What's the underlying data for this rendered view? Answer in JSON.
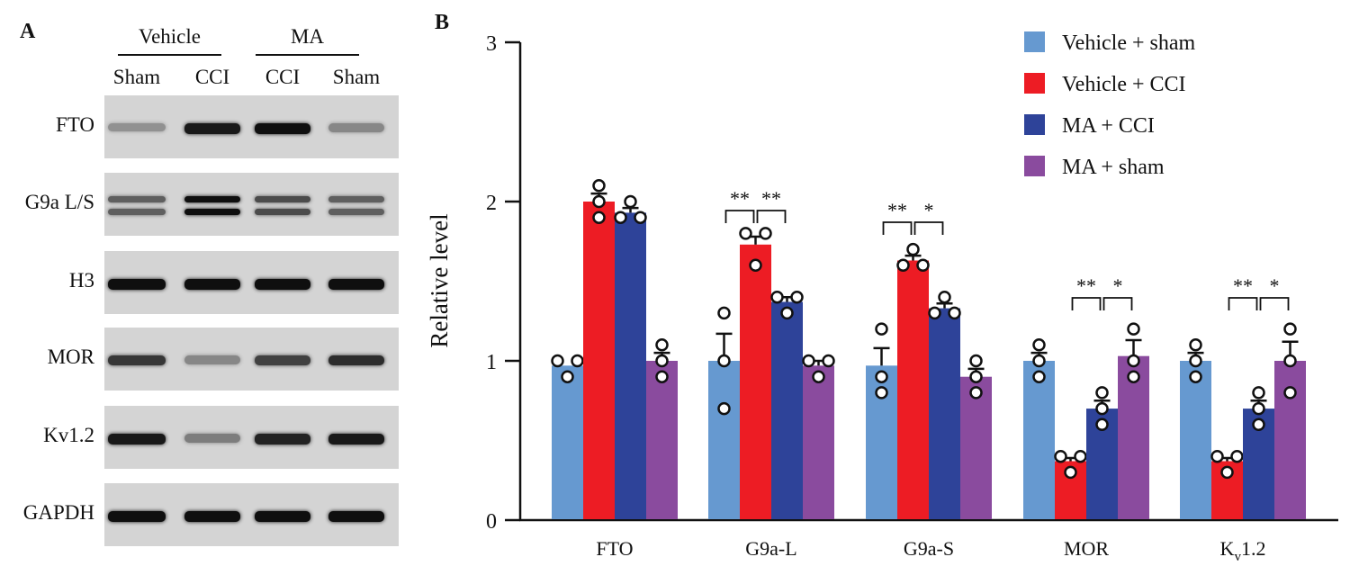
{
  "panel_a": {
    "letter": "A",
    "groups": [
      {
        "label": "Vehicle",
        "lanes": [
          "Sham",
          "CCI"
        ]
      },
      {
        "label": "MA",
        "lanes": [
          "CCI",
          "Sham"
        ]
      }
    ],
    "rows": [
      {
        "label": "FTO",
        "bands": [
          0.35,
          0.95,
          1.0,
          0.4
        ],
        "double": false
      },
      {
        "label": "G9a L/S",
        "bands": [
          0.6,
          1.0,
          0.7,
          0.6
        ],
        "double": true
      },
      {
        "label": "H3",
        "bands": [
          1.0,
          1.0,
          1.0,
          1.0
        ],
        "double": false
      },
      {
        "label": "MOR",
        "bands": [
          0.8,
          0.4,
          0.75,
          0.85
        ],
        "double": false
      },
      {
        "label": "Kv1.2",
        "bands": [
          0.95,
          0.45,
          0.9,
          0.95
        ],
        "double": false
      },
      {
        "label": "GAPDH",
        "bands": [
          1.0,
          1.0,
          1.0,
          1.0
        ],
        "double": false
      }
    ]
  },
  "panel_b": {
    "letter": "B"
  },
  "chart_data": {
    "type": "bar",
    "title": "",
    "xlabel": "",
    "ylabel": "Relative level",
    "ylim": [
      0,
      3
    ],
    "yticks": [
      0,
      1,
      2,
      3
    ],
    "grid": false,
    "legend_position": "top-right",
    "categories": [
      "FTO",
      "G9a-L",
      "G9a-S",
      "MOR",
      "Kv1.2"
    ],
    "category_display": [
      {
        "main": "FTO",
        "sub": "",
        "tail": ""
      },
      {
        "main": "G9a-L",
        "sub": "",
        "tail": ""
      },
      {
        "main": "G9a-S",
        "sub": "",
        "tail": ""
      },
      {
        "main": "MOR",
        "sub": "",
        "tail": ""
      },
      {
        "main": "K",
        "sub": "v",
        "tail": "1.2"
      }
    ],
    "series": [
      {
        "name": "Vehicle + sham",
        "color": "#6699d0",
        "values": [
          0.97,
          1.0,
          0.97,
          1.0,
          1.0
        ],
        "errors": [
          0.0,
          0.17,
          0.11,
          0.05,
          0.05
        ],
        "points": [
          [
            1.0,
            1.0,
            0.9
          ],
          [
            1.0,
            1.3,
            0.7
          ],
          [
            1.2,
            0.9,
            0.8
          ],
          [
            1.1,
            1.0,
            0.9
          ],
          [
            1.1,
            1.0,
            0.9
          ]
        ]
      },
      {
        "name": "Vehicle + CCI",
        "color": "#ed1c24",
        "values": [
          2.0,
          1.73,
          1.63,
          0.37,
          0.37
        ],
        "errors": [
          0.05,
          0.05,
          0.03,
          0.02,
          0.02
        ],
        "points": [
          [
            2.1,
            2.0,
            1.9
          ],
          [
            1.8,
            1.8,
            1.6
          ],
          [
            1.7,
            1.6,
            1.6
          ],
          [
            0.4,
            0.4,
            0.3
          ],
          [
            0.4,
            0.4,
            0.3
          ]
        ]
      },
      {
        "name": "MA + CCI",
        "color": "#2e4399",
        "values": [
          1.93,
          1.37,
          1.33,
          0.7,
          0.7
        ],
        "errors": [
          0.03,
          0.03,
          0.03,
          0.05,
          0.05
        ],
        "points": [
          [
            2.0,
            1.9,
            1.9
          ],
          [
            1.4,
            1.4,
            1.3
          ],
          [
            1.4,
            1.3,
            1.3
          ],
          [
            0.8,
            0.7,
            0.6
          ],
          [
            0.8,
            0.7,
            0.6
          ]
        ]
      },
      {
        "name": "MA + sham",
        "color": "#8a4b9e",
        "values": [
          1.0,
          0.97,
          0.9,
          1.03,
          1.0
        ],
        "errors": [
          0.05,
          0.03,
          0.05,
          0.1,
          0.12
        ],
        "points": [
          [
            1.1,
            1.0,
            0.9
          ],
          [
            1.0,
            1.0,
            0.9
          ],
          [
            1.0,
            0.9,
            0.8
          ],
          [
            1.2,
            1.0,
            0.9
          ],
          [
            1.2,
            1.0,
            0.8
          ]
        ]
      }
    ],
    "significance": [
      {
        "category": "G9a-L",
        "pairs": [
          {
            "from": 0,
            "to": 1,
            "label": "**"
          },
          {
            "from": 1,
            "to": 2,
            "label": "**"
          }
        ]
      },
      {
        "category": "G9a-S",
        "pairs": [
          {
            "from": 0,
            "to": 1,
            "label": "**"
          },
          {
            "from": 1,
            "to": 2,
            "label": "*"
          }
        ]
      },
      {
        "category": "MOR",
        "pairs": [
          {
            "from": 1,
            "to": 2,
            "label": "**"
          },
          {
            "from": 2,
            "to": 3,
            "label": "*"
          }
        ]
      },
      {
        "category": "Kv1.2",
        "pairs": [
          {
            "from": 1,
            "to": 2,
            "label": "**"
          },
          {
            "from": 2,
            "to": 3,
            "label": "*"
          }
        ]
      }
    ]
  }
}
